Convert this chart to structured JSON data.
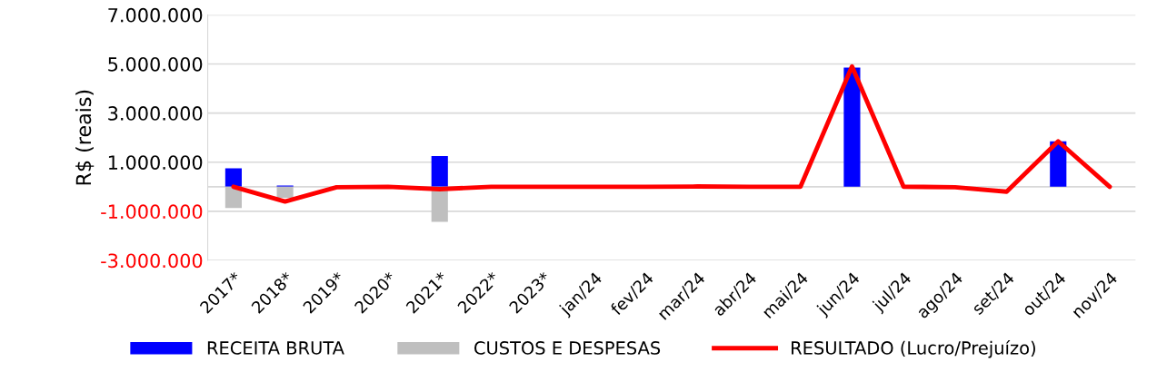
{
  "chart_data": {
    "type": "bar",
    "ylabel": "R$ (reais)",
    "categories": [
      "2017*",
      "2018*",
      "2019*",
      "2020*",
      "2021*",
      "2022*",
      "2023*",
      "jan/24",
      "fev/24",
      "mar/24",
      "abr/24",
      "mai/24",
      "jun/24",
      "jul/24",
      "ago/24",
      "set/24",
      "out/24",
      "nov/24"
    ],
    "series": [
      {
        "name": "RECEITA BRUTA",
        "color": "#0000ff",
        "values": [
          750000,
          50000,
          null,
          null,
          1250000,
          null,
          null,
          null,
          null,
          null,
          null,
          null,
          4850000,
          null,
          null,
          null,
          1850000,
          null
        ]
      },
      {
        "name": "CUSTOS E DESPESAS",
        "color": "#bfbfbf",
        "values": [
          -870000,
          -450000,
          null,
          null,
          -1430000,
          null,
          null,
          null,
          null,
          null,
          null,
          null,
          null,
          null,
          null,
          null,
          null,
          null
        ]
      },
      {
        "name": "RESULTADO (Lucro/Prejuízo)",
        "type": "line",
        "color": "#ff0000",
        "values": [
          0,
          -600000,
          -20000,
          0,
          -100000,
          0,
          0,
          0,
          0,
          10000,
          0,
          0,
          4900000,
          0,
          -20000,
          -200000,
          1850000,
          0
        ]
      }
    ],
    "ylim": [
      -3000000,
      7000000
    ],
    "yticks": [
      {
        "value": -3000000,
        "label": "-3.000.000"
      },
      {
        "value": -1000000,
        "label": "-1.000.000"
      },
      {
        "value": 1000000,
        "label": "1.000.000"
      },
      {
        "value": 3000000,
        "label": "3.000.000"
      },
      {
        "value": 5000000,
        "label": "5.000.000"
      },
      {
        "value": 7000000,
        "label": "7.000.000"
      }
    ],
    "grid": "y",
    "legend": "bottom",
    "line_style": "solid",
    "marker": "none"
  }
}
